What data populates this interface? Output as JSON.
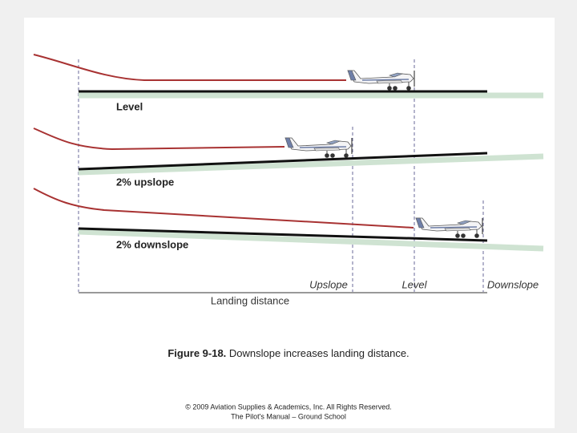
{
  "rows": [
    {
      "label": "Level"
    },
    {
      "label": "2% upslope"
    },
    {
      "label": "2% downslope"
    }
  ],
  "markers": [
    "Upslope",
    "Level",
    "Downslope"
  ],
  "axis_label": "Landing distance",
  "caption": {
    "number": "Figure 9-18.",
    "text": "Downslope increases landing distance."
  },
  "footer": [
    "© 2009 Aviation Supplies & Academics, Inc. All Rights Reserved.",
    "The Pilot's Manual – Ground School"
  ]
}
